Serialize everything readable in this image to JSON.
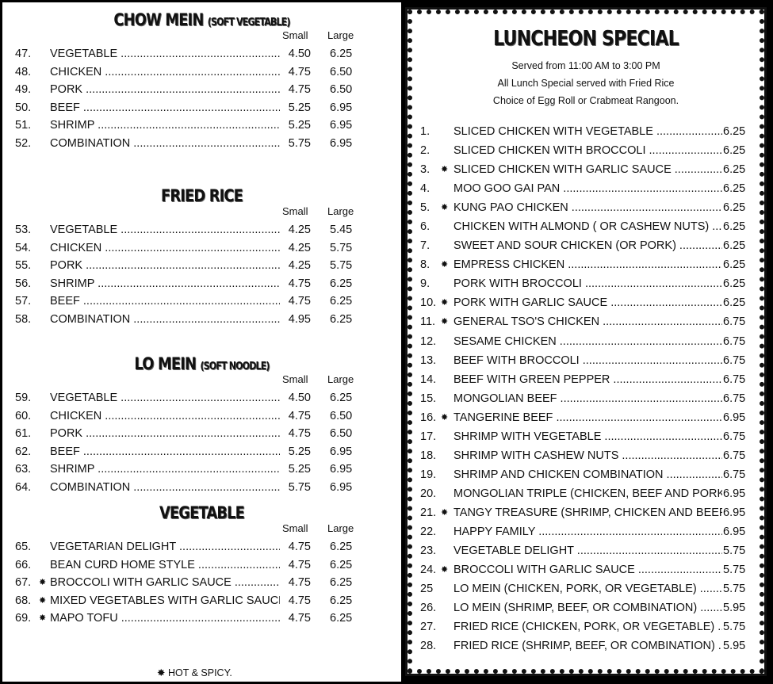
{
  "left": {
    "sections": [
      {
        "title": "CHOW MEIN",
        "subtitle": "(SOFT VEGETABLE)",
        "small": "Small",
        "large": "Large",
        "items": [
          [
            "47.",
            "VEGETABLE",
            "4.50",
            "6.25",
            false
          ],
          [
            "48.",
            "CHICKEN",
            "4.75",
            "6.50",
            false
          ],
          [
            "49.",
            "PORK",
            "4.75",
            "6.50",
            false
          ],
          [
            "50.",
            "BEEF",
            "5.25",
            "6.95",
            false
          ],
          [
            "51.",
            "SHRIMP",
            "5.25",
            "6.95",
            false
          ],
          [
            "52.",
            "COMBINATION",
            "5.75",
            "6.95",
            false
          ]
        ]
      },
      {
        "title": "FRIED RICE",
        "subtitle": "",
        "small": "Small",
        "large": "Large",
        "items": [
          [
            "53.",
            "VEGETABLE",
            "4.25",
            "5.45",
            false
          ],
          [
            "54.",
            "CHICKEN",
            "4.25",
            "5.75",
            false
          ],
          [
            "55.",
            "PORK",
            "4.25",
            "5.75",
            false
          ],
          [
            "56.",
            "SHRIMP",
            "4.75",
            "6.25",
            false
          ],
          [
            "57.",
            "BEEF",
            "4.75",
            "6.25",
            false
          ],
          [
            "58.",
            "COMBINATION",
            "4.95",
            "6.25",
            false
          ]
        ]
      },
      {
        "title": "LO MEIN",
        "subtitle": "(SOFT NOODLE)",
        "small": "Small",
        "large": "Large",
        "items": [
          [
            "59.",
            "VEGETABLE",
            "4.50",
            "6.25",
            false
          ],
          [
            "60.",
            "CHICKEN",
            "4.75",
            "6.50",
            false
          ],
          [
            "61.",
            "PORK",
            "4.75",
            "6.50",
            false
          ],
          [
            "62.",
            "BEEF",
            "5.25",
            "6.95",
            false
          ],
          [
            "63.",
            "SHRIMP",
            "5.25",
            "6.95",
            false
          ],
          [
            "64.",
            "COMBINATION",
            "5.75",
            "6.95",
            false
          ]
        ]
      },
      {
        "title": "VEGETABLE",
        "subtitle": "",
        "small": "Small",
        "large": "Large",
        "items": [
          [
            "65.",
            "VEGETARIAN DELIGHT",
            "4.75",
            "6.25",
            false
          ],
          [
            "66.",
            "BEAN CURD HOME STYLE",
            "4.75",
            "6.25",
            false
          ],
          [
            "67.",
            "BROCCOLI WITH GARLIC SAUCE",
            "4.75",
            "6.25",
            true
          ],
          [
            "68.",
            "MIXED VEGETABLES WITH GARLIC SAUCE",
            "4.75",
            "6.25",
            true
          ],
          [
            "69.",
            "MAPO TOFU",
            "4.75",
            "6.25",
            true
          ]
        ]
      }
    ],
    "footnote": "HOT & SPICY."
  },
  "right": {
    "title": "LUNCHEON SPECIAL",
    "lines": [
      "Served from 11:00 AM to 3:00 PM",
      "All Lunch Special served with Fried Rice",
      "Choice of Egg Roll or Crabmeat Rangoon."
    ],
    "items": [
      [
        "1.",
        "SLICED CHICKEN WITH VEGETABLE",
        "6.25",
        false
      ],
      [
        "2.",
        "SLICED CHICKEN WITH BROCCOLI",
        "6.25",
        false
      ],
      [
        "3.",
        "SLICED CHICKEN WITH GARLIC SAUCE",
        "6.25",
        true
      ],
      [
        "4.",
        "MOO GOO GAI PAN",
        "6.25",
        false
      ],
      [
        "5.",
        "KUNG PAO CHICKEN",
        "6.25",
        true
      ],
      [
        "6.",
        "CHICKEN WITH ALMOND ( OR CASHEW NUTS)",
        "6.25",
        false
      ],
      [
        "7.",
        "SWEET AND SOUR CHICKEN (OR PORK)",
        "6.25",
        false
      ],
      [
        "8.",
        "EMPRESS CHICKEN",
        "6.25",
        true
      ],
      [
        "9.",
        "PORK WITH BROCCOLI",
        "6.25",
        false
      ],
      [
        "10.",
        "PORK WITH GARLIC SAUCE",
        "6.25",
        true
      ],
      [
        "11.",
        "GENERAL TSO'S CHICKEN",
        "6.75",
        true
      ],
      [
        "12.",
        "SESAME CHICKEN",
        "6.75",
        false
      ],
      [
        "13.",
        "BEEF WITH BROCCOLI",
        "6.75",
        false
      ],
      [
        "14.",
        "BEEF WITH GREEN PEPPER",
        "6.75",
        false
      ],
      [
        "15.",
        "MONGOLIAN BEEF",
        "6.75",
        false
      ],
      [
        "16.",
        "TANGERINE BEEF",
        "6.95",
        true
      ],
      [
        "17.",
        "SHRIMP WITH VEGETABLE",
        "6.75",
        false
      ],
      [
        "18.",
        "SHRIMP WITH CASHEW NUTS",
        "6.75",
        false
      ],
      [
        "19.",
        "SHRIMP AND CHICKEN COMBINATION",
        "6.75",
        false
      ],
      [
        "20.",
        "MONGOLIAN TRIPLE (CHICKEN, BEEF AND PORK)",
        "6.95",
        false
      ],
      [
        "21.",
        "TANGY TREASURE (SHRIMP, CHICKEN AND BEEF)",
        "6.95",
        true
      ],
      [
        "22.",
        "HAPPY FAMILY",
        "6.95",
        false
      ],
      [
        "23.",
        "VEGETABLE DELIGHT",
        "5.75",
        false
      ],
      [
        "24.",
        "BROCCOLI WITH GARLIC SAUCE",
        "5.75",
        true
      ],
      [
        "25",
        "LO MEIN (CHICKEN, PORK,  OR VEGETABLE)",
        "5.75",
        false
      ],
      [
        "26.",
        "LO MEIN (SHRIMP, BEEF,  OR COMBINATION)",
        "5.95",
        false
      ],
      [
        "27.",
        "FRIED RICE (CHICKEN, PORK, OR VEGETABLE)",
        "5.75",
        false
      ],
      [
        "28.",
        "FRIED RICE (SHRIMP, BEEF,  OR COMBINATION)",
        "5.95",
        false
      ]
    ]
  },
  "icons": {
    "spicy": "chili-pepper-icon"
  }
}
